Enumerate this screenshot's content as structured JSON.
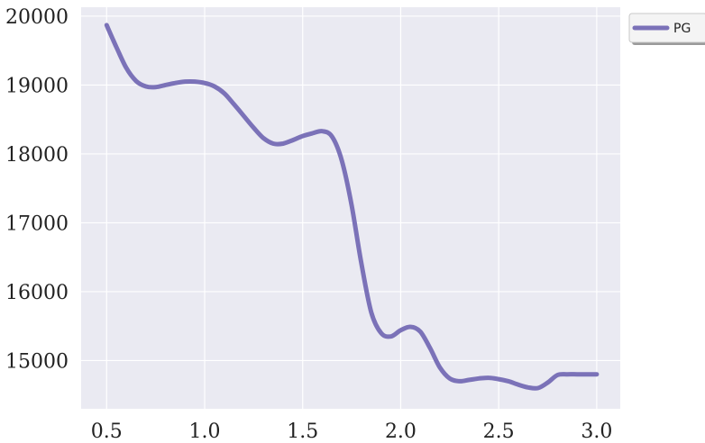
{
  "chart_data": {
    "type": "line",
    "title": "",
    "xlabel": "",
    "ylabel": "",
    "xlim": [
      0.37,
      3.12
    ],
    "ylim": [
      14300,
      20130
    ],
    "grid": true,
    "legend_placement": "outside-top-right",
    "x_ticks": [
      0.5,
      1.0,
      1.5,
      2.0,
      2.5,
      3.0
    ],
    "x_tick_labels": [
      "0.5",
      "1.0",
      "1.5",
      "2.0",
      "2.5",
      "3.0"
    ],
    "y_ticks": [
      15000,
      16000,
      17000,
      18000,
      19000,
      20000
    ],
    "y_tick_labels": [
      "15000",
      "16000",
      "17000",
      "18000",
      "19000",
      "20000"
    ],
    "series": [
      {
        "name": "PG",
        "color": "#7b72b8",
        "x": [
          0.5,
          0.55,
          0.6,
          0.65,
          0.7,
          0.75,
          0.8,
          0.85,
          0.9,
          0.95,
          1.0,
          1.05,
          1.1,
          1.15,
          1.2,
          1.25,
          1.3,
          1.35,
          1.4,
          1.45,
          1.5,
          1.55,
          1.6,
          1.65,
          1.7,
          1.75,
          1.8,
          1.85,
          1.9,
          1.95,
          2.0,
          2.05,
          2.1,
          2.15,
          2.2,
          2.25,
          2.3,
          2.35,
          2.4,
          2.45,
          2.5,
          2.55,
          2.6,
          2.65,
          2.7,
          2.75,
          2.8,
          2.85,
          2.9,
          2.95,
          3.0
        ],
        "values": [
          19870,
          19550,
          19250,
          19060,
          18980,
          18970,
          19000,
          19030,
          19050,
          19050,
          19030,
          18980,
          18880,
          18720,
          18550,
          18380,
          18230,
          18150,
          18150,
          18200,
          18260,
          18300,
          18330,
          18250,
          17900,
          17250,
          16400,
          15700,
          15400,
          15350,
          15440,
          15490,
          15420,
          15180,
          14900,
          14740,
          14700,
          14720,
          14740,
          14750,
          14730,
          14700,
          14650,
          14610,
          14600,
          14680,
          14790,
          14800,
          14800,
          14800,
          14800
        ]
      }
    ]
  }
}
